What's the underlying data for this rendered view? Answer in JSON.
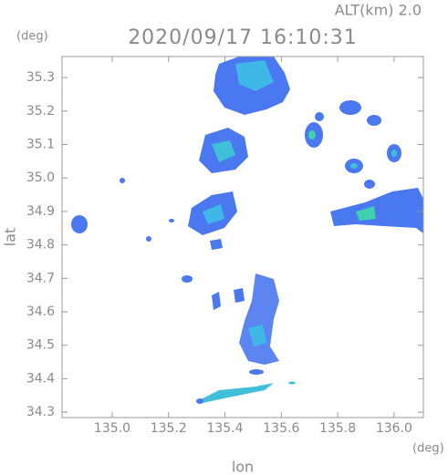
{
  "chart_data": {
    "type": "map",
    "title": "2020/09/17 16:10:31",
    "subtitle": "ALT(km) 2.0",
    "x_label": "lon",
    "y_label": "lat",
    "x_unit": "(deg)",
    "y_unit": "(deg)",
    "xlim": [
      134.822,
      136.104
    ],
    "ylim": [
      34.284,
      35.363
    ],
    "xticks": [
      {
        "value": 135,
        "label": "135.0"
      },
      135.2,
      135.4,
      135.6,
      135.8,
      {
        "value": 136,
        "label": "136.0"
      }
    ],
    "yticks": [
      35.3,
      35.2,
      35.1,
      {
        "value": 35,
        "label": "35.0"
      },
      34.9,
      34.8,
      34.7,
      34.6,
      34.5,
      34.4,
      34.3
    ]
  }
}
